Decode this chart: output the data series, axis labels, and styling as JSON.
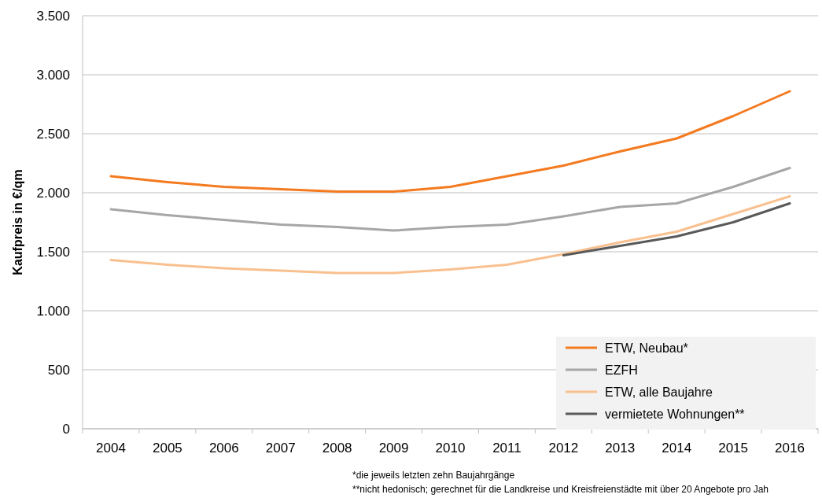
{
  "chart_data": {
    "type": "line",
    "ylabel": "Kaufpreis in €/qm",
    "categories": [
      "2004",
      "2005",
      "2006",
      "2007",
      "2008",
      "2009",
      "2010",
      "2011",
      "2012",
      "2013",
      "2014",
      "2015",
      "2016"
    ],
    "ylim": [
      0,
      3500
    ],
    "yticks": [
      {
        "value": 0,
        "label": "0"
      },
      {
        "value": 500,
        "label": "500"
      },
      {
        "value": 1000,
        "label": "1.000"
      },
      {
        "value": 1500,
        "label": "1.500"
      },
      {
        "value": 2000,
        "label": "2.000"
      },
      {
        "value": 2500,
        "label": "2.500"
      },
      {
        "value": 3000,
        "label": "3.000"
      },
      {
        "value": 3500,
        "label": "3.500"
      }
    ],
    "grid": "y",
    "legend": "bottom right",
    "marker": "none",
    "line_style": "solid",
    "series": [
      {
        "name": "ETW, Neubau*",
        "color": "#f47a20",
        "values": [
          2140,
          2090,
          2050,
          2030,
          2010,
          2010,
          2050,
          2140,
          2230,
          2350,
          2460,
          2650,
          2860
        ]
      },
      {
        "name": "EZFH",
        "color": "#a6a6a6",
        "values": [
          1860,
          1810,
          1770,
          1730,
          1710,
          1680,
          1710,
          1730,
          1800,
          1880,
          1910,
          2050,
          2210
        ]
      },
      {
        "name": "ETW, alle Baujahre",
        "color": "#f9c08f",
        "values": [
          1430,
          1390,
          1360,
          1340,
          1320,
          1320,
          1350,
          1390,
          1480,
          1580,
          1670,
          1820,
          1970
        ]
      },
      {
        "name": "vermietete Wohnungen**",
        "color": "#595959",
        "values": [
          null,
          null,
          null,
          null,
          null,
          null,
          null,
          null,
          1470,
          1550,
          1630,
          1750,
          1910
        ]
      }
    ],
    "annotations": [
      "*die jeweils letzten zehn Baujahrgänge",
      "**nicht hedonisch; gerechnet für die Landkreise und Kreisfreienstädte mit über 20 Angebote pro Jah"
    ]
  }
}
